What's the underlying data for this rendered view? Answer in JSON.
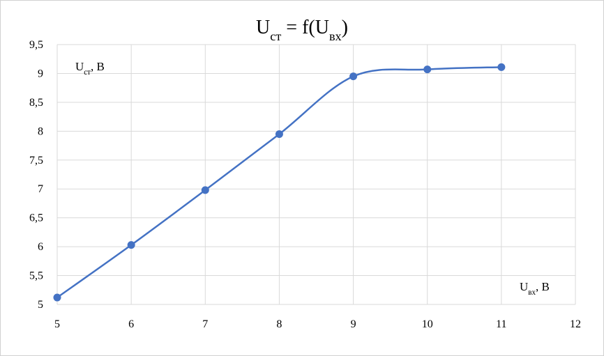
{
  "chart_data": {
    "type": "scatter",
    "title": [
      {
        "text": "U"
      },
      {
        "text": "ст",
        "sub": true
      },
      {
        "text": " = f(U"
      },
      {
        "text": "вх",
        "sub": true
      },
      {
        "text": ")"
      }
    ],
    "ylabel": [
      {
        "text": "U"
      },
      {
        "text": "ст",
        "sub": true
      },
      {
        "text": ", В"
      }
    ],
    "xlabel": [
      {
        "text": "U"
      },
      {
        "text": "вх",
        "sub": true
      },
      {
        "text": ", В"
      }
    ],
    "x": [
      5,
      6,
      7,
      8,
      9,
      10,
      11
    ],
    "values": [
      5.12,
      6.03,
      6.98,
      7.95,
      8.95,
      9.07,
      9.11
    ],
    "color": "#4472c4",
    "smooth": true,
    "xlim": [
      5,
      12
    ],
    "xticks": [
      5,
      6,
      7,
      8,
      9,
      10,
      11,
      12
    ],
    "ylim": [
      5,
      9.5
    ],
    "yticks": [
      5,
      {
        "value": 5.5,
        "label": "5,5"
      },
      6,
      {
        "value": 6.5,
        "label": "6,5"
      },
      7,
      {
        "value": 7.5,
        "label": "7,5"
      },
      8,
      {
        "value": 8.5,
        "label": "8,5"
      },
      9,
      {
        "value": 9.5,
        "label": "9,5"
      }
    ],
    "grid": true
  }
}
